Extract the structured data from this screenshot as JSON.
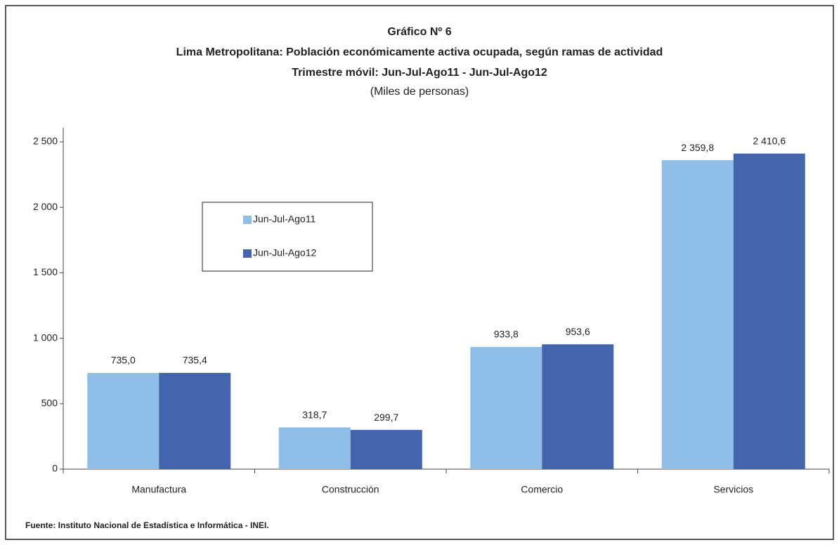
{
  "chart_data": {
    "type": "bar",
    "title": "Gráfico Nº 6",
    "subtitle": "Lima Metropolitana: Población económicamente activa ocupada, según ramas de actividad",
    "subtitle2": "Trimestre móvil: Jun-Jul-Ago11 - Jun-Jul-Ago12",
    "unit_label": "(Miles de personas)",
    "source": "Fuente: Instituto Nacional de Estadística e Informática - INEI.",
    "categories": [
      "Manufactura",
      "Construcción",
      "Comercio",
      "Servicios"
    ],
    "series": [
      {
        "name": "Jun-Jul-Ago11",
        "color": "#8fbfe8",
        "values": [
          735.0,
          318.7,
          933.8,
          2359.8
        ],
        "value_labels": [
          "735,0",
          "318,7",
          "933,8",
          "2 359,8"
        ]
      },
      {
        "name": "Jun-Jul-Ago12",
        "color": "#4564ae",
        "values": [
          735.4,
          299.7,
          953.6,
          2410.6
        ],
        "value_labels": [
          "735,4",
          "299,7",
          "953,6",
          "2 410,6"
        ]
      }
    ],
    "ylim": [
      0,
      2500
    ],
    "yticks": [
      0,
      500,
      {
        "value": 1000,
        "label": "1 000"
      },
      {
        "value": 1500,
        "label": "1 500"
      },
      {
        "value": 2000,
        "label": "2 000"
      },
      {
        "value": 2500,
        "label": "2 500"
      }
    ],
    "grid": false
  }
}
